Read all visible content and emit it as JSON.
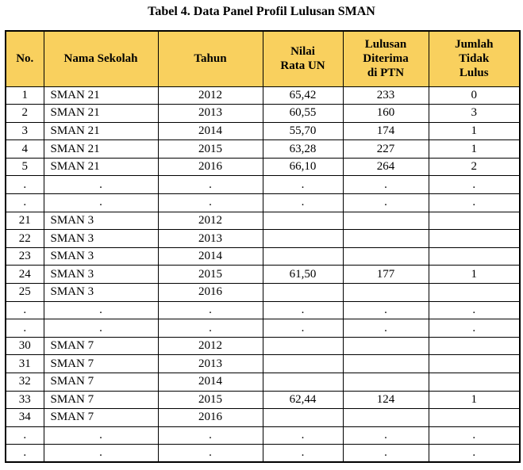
{
  "title": "Tabel 4. Data Panel Profil Lulusan SMAN",
  "colors": {
    "header_bg": "#F9D05E",
    "border": "#000000",
    "text": "#000000",
    "page_bg": "#FFFFFF"
  },
  "table": {
    "columns": [
      "No.",
      "Nama Sekolah",
      "Tahun",
      "Nilai\nRata UN",
      "Lulusan\nDiterima\ndi PTN",
      "Jumlah\nTidak\nLulus"
    ],
    "rows": [
      [
        "1",
        "SMAN 21",
        "2012",
        "65,42",
        "233",
        "0"
      ],
      [
        "2",
        "SMAN 21",
        "2013",
        "60,55",
        "160",
        "3"
      ],
      [
        "3",
        "SMAN 21",
        "2014",
        "55,70",
        "174",
        "1"
      ],
      [
        "4",
        "SMAN 21",
        "2015",
        "63,28",
        "227",
        "1"
      ],
      [
        "5",
        "SMAN 21",
        "2016",
        "66,10",
        "264",
        "2"
      ],
      [
        ".",
        ".",
        ".",
        ".",
        ".",
        "."
      ],
      [
        ".",
        ".",
        ".",
        ".",
        ".",
        "."
      ],
      [
        "21",
        "SMAN 3",
        "2012",
        "",
        "",
        ""
      ],
      [
        "22",
        "SMAN 3",
        "2013",
        "",
        "",
        ""
      ],
      [
        "23",
        "SMAN 3",
        "2014",
        "",
        "",
        ""
      ],
      [
        "24",
        "SMAN 3",
        "2015",
        "61,50",
        "177",
        "1"
      ],
      [
        "25",
        "SMAN 3",
        "2016",
        "",
        "",
        ""
      ],
      [
        ".",
        ".",
        ".",
        ".",
        ".",
        "."
      ],
      [
        ".",
        ".",
        ".",
        ".",
        ".",
        "."
      ],
      [
        "30",
        "SMAN 7",
        "2012",
        "",
        "",
        ""
      ],
      [
        "31",
        "SMAN 7",
        "2013",
        "",
        "",
        ""
      ],
      [
        "32",
        "SMAN 7",
        "2014",
        "",
        "",
        ""
      ],
      [
        "33",
        "SMAN 7",
        "2015",
        "62,44",
        "124",
        "1"
      ],
      [
        "34",
        "SMAN 7",
        "2016",
        "",
        "",
        ""
      ],
      [
        ".",
        ".",
        ".",
        ".",
        ".",
        "."
      ],
      [
        ".",
        ".",
        ".",
        ".",
        ".",
        "."
      ]
    ]
  }
}
